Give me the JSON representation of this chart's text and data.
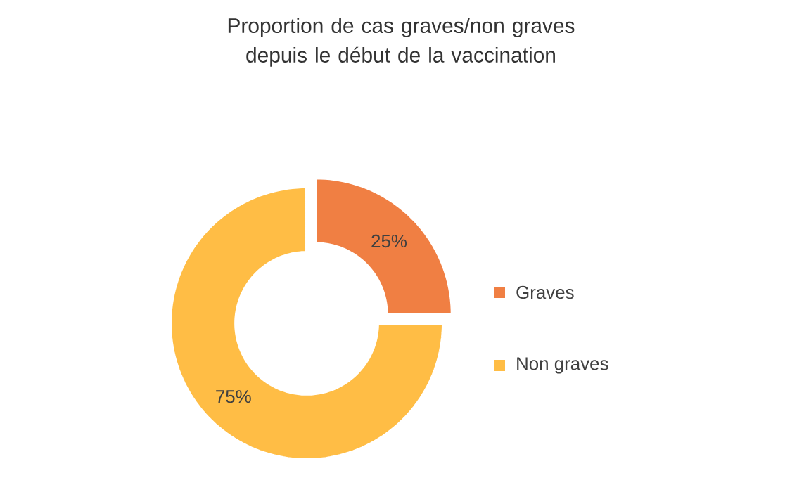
{
  "chart_data": {
    "type": "donut",
    "title": "Proportion de cas graves/non graves depuis le début de la vaccination",
    "categories": [
      "Graves",
      "Non graves"
    ],
    "values": [
      25,
      75
    ],
    "colors": [
      "#f07f43",
      "#ffbd45"
    ],
    "value_labels": [
      "25%",
      "75%"
    ],
    "legend": "right"
  }
}
